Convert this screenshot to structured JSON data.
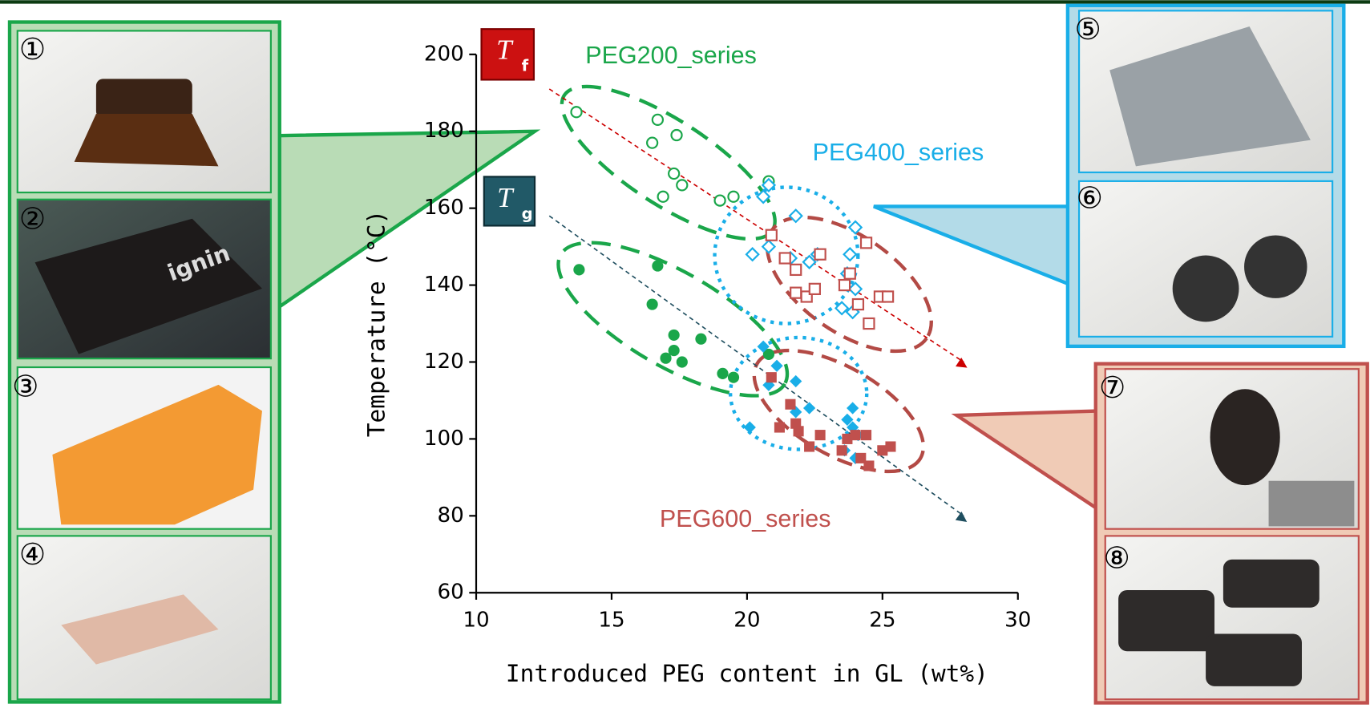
{
  "chart_data": {
    "type": "scatter",
    "xlabel": "Introduced PEG content in GL (wt%)",
    "ylabel": "Temperature (°C)",
    "xlim": [
      10,
      30
    ],
    "xticks": [
      10,
      15,
      20,
      25,
      30
    ],
    "ylim": [
      60,
      200
    ],
    "yticks": [
      60,
      80,
      100,
      120,
      140,
      160,
      180,
      200
    ],
    "markers": {
      "tf_symbol": "T",
      "tf_sub": "f",
      "tg_symbol": "T",
      "tg_sub": "g"
    },
    "series": [
      {
        "name": "PEG200_series",
        "color": "#1aa64a",
        "marker": "circle",
        "tf_x": [
          13.7,
          16.7,
          16.5,
          17.4,
          16.9,
          17.3,
          17.6,
          19.0,
          19.5,
          20.8
        ],
        "tf": [
          185,
          183,
          177,
          179,
          163,
          169,
          166,
          162,
          163,
          167
        ],
        "tg_x": [
          13.8,
          16.7,
          16.5,
          17.3,
          17.0,
          17.3,
          17.6,
          18.3,
          19.1,
          19.5,
          20.8
        ],
        "tg": [
          144,
          145,
          135,
          127,
          121,
          123,
          120,
          126,
          117,
          116,
          122
        ]
      },
      {
        "name": "PEG400_series",
        "color": "#19aee8",
        "marker": "diamond",
        "tf_x": [
          20.2,
          20.6,
          20.8,
          20.8,
          21.8,
          21.6,
          22.3,
          22.6,
          23.5,
          23.8,
          23.7,
          24.0,
          24.0,
          23.9
        ],
        "tf": [
          148,
          163,
          166,
          150,
          158,
          147,
          146,
          148,
          134,
          148,
          143,
          139,
          155,
          133
        ],
        "tg_x": [
          20.1,
          20.6,
          20.8,
          21.1,
          21.8,
          21.8,
          22.3,
          23.6,
          23.7,
          23.9,
          23.9,
          24.0,
          24.1
        ],
        "tg": [
          103,
          124,
          114,
          119,
          115,
          107,
          108,
          97,
          105,
          108,
          103,
          95,
          101
        ]
      },
      {
        "name": "PEG600_series",
        "color": "#c0504d",
        "marker": "square",
        "tf_x": [
          20.9,
          21.4,
          21.8,
          21.8,
          22.2,
          22.5,
          22.7,
          23.6,
          23.8,
          24.1,
          24.4,
          24.5,
          24.9,
          25.2
        ],
        "tf": [
          153,
          147,
          144,
          138,
          137,
          139,
          148,
          140,
          143,
          135,
          151,
          130,
          137,
          137
        ],
        "tg_x": [
          20.9,
          21.2,
          21.6,
          21.8,
          21.9,
          22.3,
          22.7,
          23.5,
          23.7,
          24.0,
          24.2,
          24.4,
          24.5,
          25.0,
          25.3
        ],
        "tg": [
          116,
          103,
          109,
          104,
          102,
          98,
          101,
          97,
          100,
          101,
          95,
          101,
          93,
          97,
          98
        ]
      }
    ],
    "trend_lines": [
      {
        "color": "#cc0000",
        "x": [
          12.7,
          28
        ],
        "values": [
          191,
          120
        ]
      },
      {
        "color": "#1f4e5f",
        "x": [
          12.7,
          28
        ],
        "values": [
          158,
          80
        ]
      }
    ]
  },
  "panels": [
    {
      "label": "①"
    },
    {
      "label": "②",
      "text": "ignin"
    },
    {
      "label": "③"
    },
    {
      "label": "④"
    },
    {
      "label": "⑤"
    },
    {
      "label": "⑥"
    },
    {
      "label": "⑦"
    },
    {
      "label": "⑧"
    }
  ]
}
